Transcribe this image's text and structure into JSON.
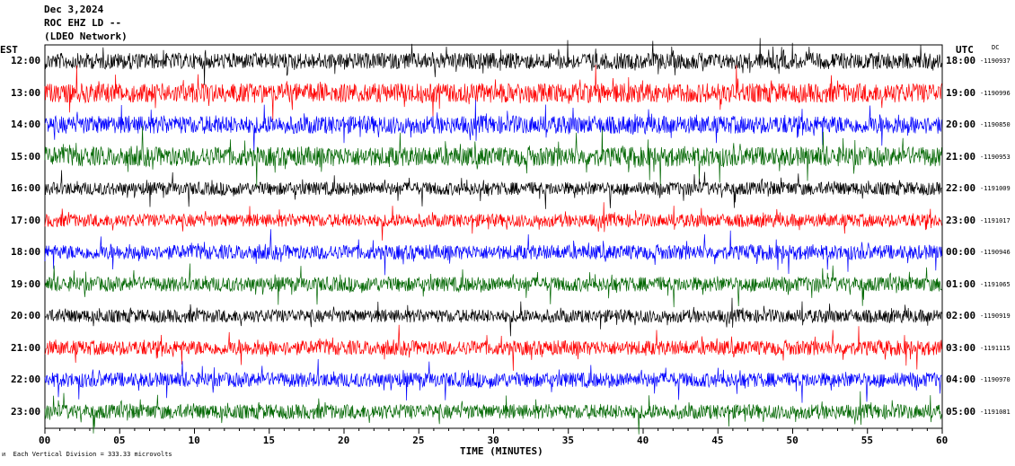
{
  "header": {
    "date": "Dec 3,2024",
    "station": "ROC EHZ LD --",
    "network": "(LDEO Network)"
  },
  "left_zone": "EST",
  "right_zone": "UTC",
  "dc_label": "DC",
  "x_axis_title": "TIME (MINUTES)",
  "footer": "Each Vertical Division = 333.33 microvolts",
  "colors": {
    "trace_cycle": [
      "#000000",
      "#ff0000",
      "#0000ff",
      "#006600"
    ]
  },
  "chart_data": {
    "type": "line",
    "description_kind": "helicorder",
    "x_label": "TIME (MINUTES)",
    "x_range": [
      0,
      60
    ],
    "x_ticks": [
      "00",
      "05",
      "10",
      "15",
      "20",
      "25",
      "30",
      "35",
      "40",
      "45",
      "50",
      "55",
      "60"
    ],
    "rows": [
      {
        "est": "12:00",
        "utc": "18:00",
        "dc": "-1190937",
        "color": "#000000",
        "amplitude": 1.0
      },
      {
        "est": "13:00",
        "utc": "19:00",
        "dc": "-1190996",
        "color": "#ff0000",
        "amplitude": 1.2
      },
      {
        "est": "14:00",
        "utc": "20:00",
        "dc": "-1190850",
        "color": "#0000ff",
        "amplitude": 1.1
      },
      {
        "est": "15:00",
        "utc": "21:00",
        "dc": "-1190953",
        "color": "#006600",
        "amplitude": 1.2
      },
      {
        "est": "16:00",
        "utc": "22:00",
        "dc": "-1191009",
        "color": "#000000",
        "amplitude": 0.8
      },
      {
        "est": "17:00",
        "utc": "23:00",
        "dc": "-1191017",
        "color": "#ff0000",
        "amplitude": 0.8
      },
      {
        "est": "18:00",
        "utc": "00:00",
        "dc": "-1190946",
        "color": "#0000ff",
        "amplitude": 0.9
      },
      {
        "est": "19:00",
        "utc": "01:00",
        "dc": "-1191065",
        "color": "#006600",
        "amplitude": 0.9
      },
      {
        "est": "20:00",
        "utc": "02:00",
        "dc": "-1190919",
        "color": "#000000",
        "amplitude": 0.8
      },
      {
        "est": "21:00",
        "utc": "03:00",
        "dc": "-1191115",
        "color": "#ff0000",
        "amplitude": 0.9
      },
      {
        "est": "22:00",
        "utc": "04:00",
        "dc": "-1190970",
        "color": "#0000ff",
        "amplitude": 0.9
      },
      {
        "est": "23:00",
        "utc": "05:00",
        "dc": "-1191081",
        "color": "#006600",
        "amplitude": 0.9
      }
    ]
  }
}
